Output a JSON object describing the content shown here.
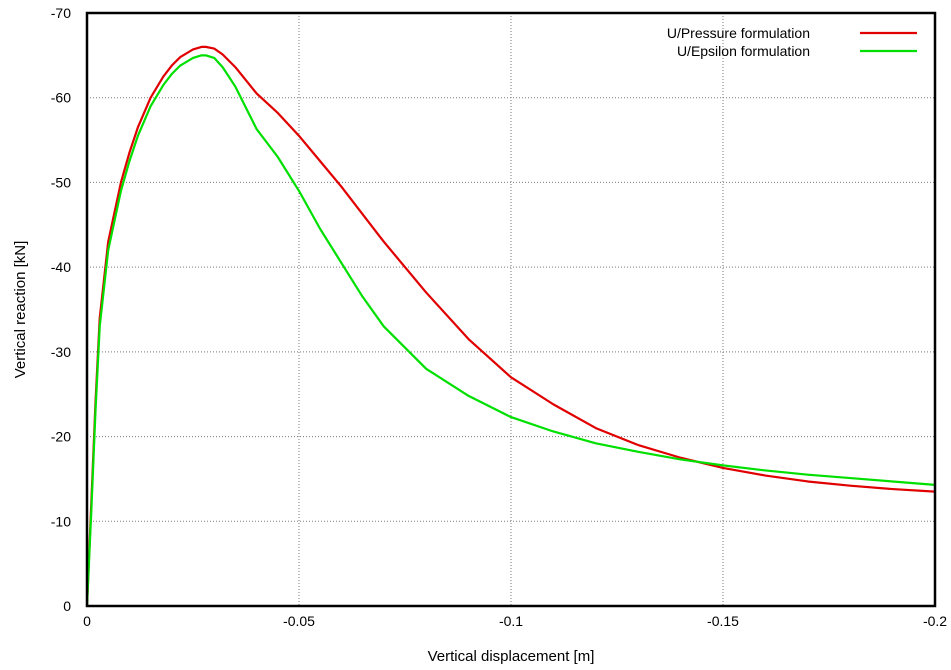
{
  "chart_data": {
    "type": "line",
    "title": "",
    "xlabel": "Vertical displacement [m]",
    "ylabel": "Vertical reaction [kN]",
    "xlim": [
      0,
      -0.2
    ],
    "ylim": [
      0,
      -70
    ],
    "x_ticks": [
      "0",
      "-0.05",
      "-0.1",
      "-0.15",
      "-0.2"
    ],
    "y_ticks": [
      "0",
      "-10",
      "-20",
      "-30",
      "-40",
      "-50",
      "-60",
      "-70"
    ],
    "grid": true,
    "legend_position": "top-right",
    "series": [
      {
        "name": "U/Pressure formulation",
        "color": "#e00000",
        "x": [
          0,
          -0.001,
          -0.002,
          -0.003,
          -0.005,
          -0.008,
          -0.01,
          -0.012,
          -0.015,
          -0.018,
          -0.02,
          -0.022,
          -0.025,
          -0.027,
          -0.028,
          -0.03,
          -0.032,
          -0.035,
          -0.04,
          -0.045,
          -0.05,
          -0.055,
          -0.06,
          -0.07,
          -0.08,
          -0.09,
          -0.1,
          -0.11,
          -0.12,
          -0.13,
          -0.14,
          -0.15,
          -0.16,
          -0.17,
          -0.18,
          -0.19,
          -0.2
        ],
        "y": [
          0,
          -12,
          -24,
          -34,
          -43,
          -50,
          -53.5,
          -56.5,
          -60,
          -62.5,
          -63.8,
          -64.8,
          -65.7,
          -66,
          -66,
          -65.8,
          -65.1,
          -63.6,
          -60.5,
          -58.2,
          -55.5,
          -52.5,
          -49.5,
          -43,
          -37,
          -31.5,
          -27,
          -23.8,
          -21,
          -19,
          -17.5,
          -16.3,
          -15.4,
          -14.7,
          -14.2,
          -13.8,
          -13.5
        ]
      },
      {
        "name": "U/Epsilon formulation",
        "color": "#00e000",
        "x": [
          0,
          -0.001,
          -0.002,
          -0.003,
          -0.005,
          -0.008,
          -0.01,
          -0.012,
          -0.015,
          -0.018,
          -0.02,
          -0.022,
          -0.025,
          -0.027,
          -0.028,
          -0.03,
          -0.032,
          -0.035,
          -0.04,
          -0.045,
          -0.05,
          -0.055,
          -0.06,
          -0.065,
          -0.07,
          -0.08,
          -0.09,
          -0.1,
          -0.11,
          -0.12,
          -0.13,
          -0.14,
          -0.15,
          -0.16,
          -0.17,
          -0.18,
          -0.19,
          -0.2
        ],
        "y": [
          0,
          -11,
          -23,
          -33,
          -42,
          -49,
          -52.5,
          -55.5,
          -59,
          -61.5,
          -62.8,
          -63.8,
          -64.7,
          -65,
          -65,
          -64.7,
          -63.6,
          -61.3,
          -56.3,
          -53,
          -49,
          -44.5,
          -40.5,
          -36.5,
          -33,
          -28,
          -24.8,
          -22.3,
          -20.6,
          -19.2,
          -18.2,
          -17.3,
          -16.6,
          -16,
          -15.5,
          -15.1,
          -14.7,
          -14.3
        ]
      }
    ]
  }
}
